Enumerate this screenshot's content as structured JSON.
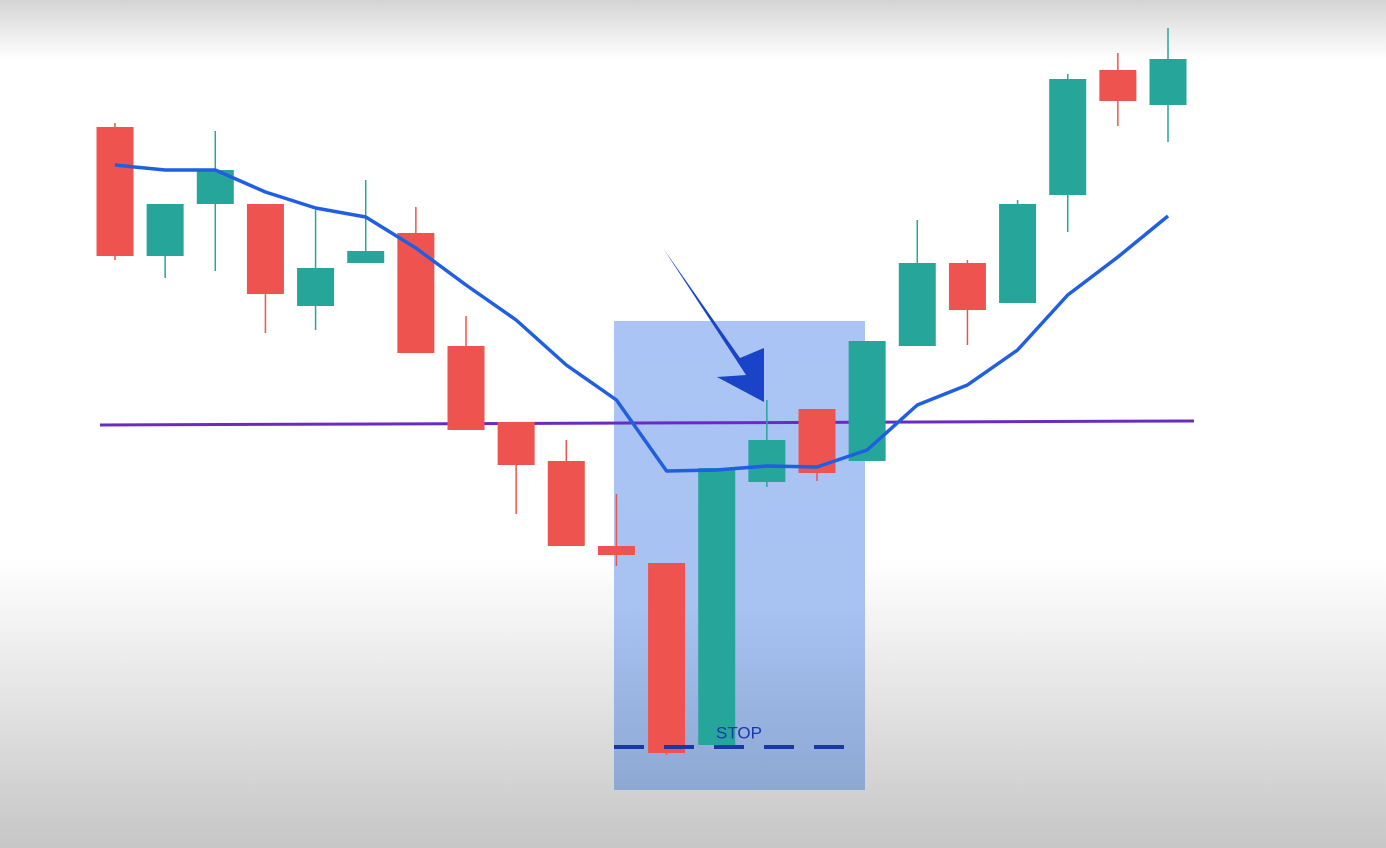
{
  "chart_data": {
    "type": "candlestick",
    "ylim": [
      0,
      848
    ],
    "up_color": "#26a69a",
    "down_color": "#ef5350",
    "open": [
      721,
      592,
      644,
      644,
      542,
      585,
      615,
      502,
      426,
      387,
      302,
      285,
      103,
      366,
      439,
      387,
      502,
      585,
      545,
      653,
      778,
      743
    ],
    "high": [
      725,
      644,
      717,
      644,
      638,
      668,
      641,
      532,
      426,
      408,
      354,
      285,
      380,
      448,
      439,
      507,
      628,
      588,
      648,
      774,
      795,
      820
    ],
    "low": [
      588,
      570,
      577,
      515,
      518,
      585,
      495,
      418,
      334,
      302,
      282,
      93,
      103,
      361,
      367,
      387,
      502,
      503,
      545,
      616,
      722,
      706
    ],
    "close": [
      592,
      644,
      678,
      554,
      580,
      597,
      495,
      418,
      383,
      302,
      293,
      95,
      380,
      408,
      375,
      507,
      585,
      538,
      644,
      769,
      747,
      789
    ],
    "moving_average": {
      "color": "#1f5fe0",
      "values": [
        683,
        678,
        678,
        656,
        640,
        631,
        600,
        563,
        528,
        483,
        448,
        377,
        378,
        382,
        381,
        398,
        443,
        463,
        498,
        553,
        591,
        632
      ]
    },
    "level_line": {
      "color": "#6a2bc4",
      "values": [
        423,
        427
      ]
    },
    "stop": {
      "label": "STOP",
      "value": 101,
      "color": "#1838a8"
    }
  }
}
